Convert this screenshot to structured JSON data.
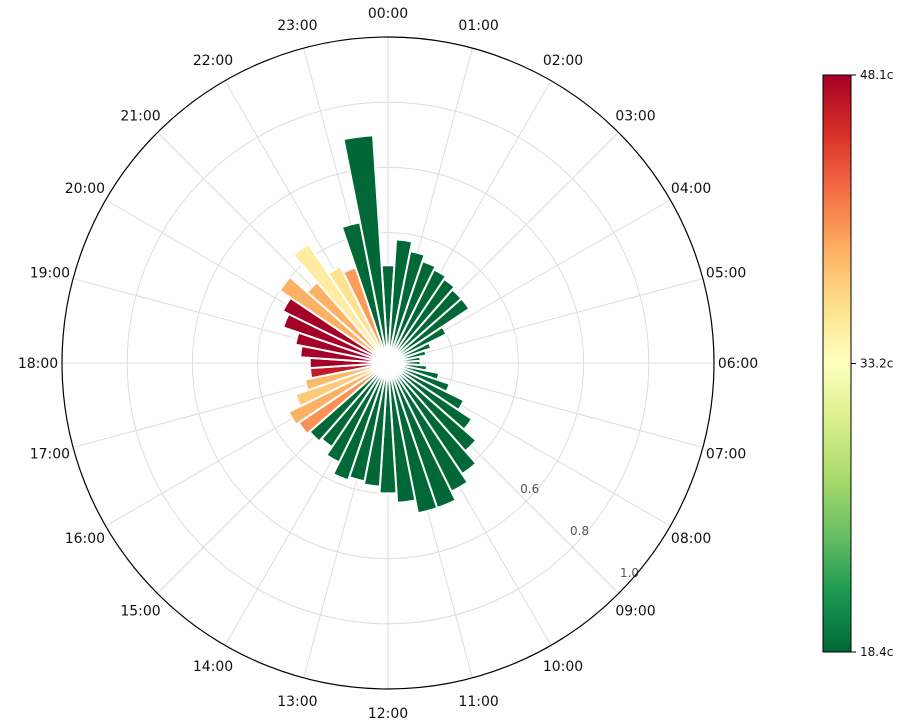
{
  "chart_data": {
    "type": "polar-bar",
    "angular_labels": [
      "00:00",
      "01:00",
      "02:00",
      "03:00",
      "04:00",
      "05:00",
      "06:00",
      "07:00",
      "08:00",
      "09:00",
      "10:00",
      "11:00",
      "12:00",
      "13:00",
      "14:00",
      "15:00",
      "16:00",
      "17:00",
      "18:00",
      "19:00",
      "20:00",
      "21:00",
      "22:00",
      "23:00"
    ],
    "radial_tick_labels": [
      "0.6",
      "0.8",
      "1.0"
    ],
    "radial_max": 1.0,
    "bins_per_hour": 2,
    "values": [
      0.3,
      0.38,
      0.35,
      0.33,
      0.32,
      0.31,
      0.3,
      0.3,
      0.2,
      0.14,
      0.12,
      0.1,
      0.1,
      0.12,
      0.16,
      0.2,
      0.26,
      0.31,
      0.36,
      0.41,
      0.44,
      0.47,
      0.47,
      0.43,
      0.4,
      0.38,
      0.37,
      0.38,
      0.34,
      0.31,
      0.32,
      0.33,
      0.34,
      0.3,
      0.26,
      0.24,
      0.24,
      0.27,
      0.29,
      0.34,
      0.36,
      0.4,
      0.33,
      0.44,
      0.33,
      0.31,
      0.44,
      0.7
    ],
    "prices": [
      18.4,
      18.4,
      18.4,
      18.4,
      18.4,
      18.4,
      18.4,
      18.4,
      18.4,
      18.4,
      18.4,
      18.4,
      18.4,
      18.4,
      18.4,
      18.4,
      18.4,
      18.4,
      18.4,
      18.4,
      18.4,
      18.4,
      18.4,
      18.4,
      18.4,
      18.4,
      18.4,
      18.4,
      18.4,
      18.4,
      18.4,
      40.5,
      39.0,
      37.5,
      38.5,
      46.5,
      48.1,
      48.1,
      48.1,
      48.1,
      48.1,
      39.0,
      39.0,
      35.0,
      36.0,
      40.0,
      18.4,
      18.4
    ],
    "colorbar": {
      "min": 18.4,
      "max": 48.1,
      "ticks": [
        "48.1c",
        "33.2c",
        "18.4c"
      ],
      "colors": [
        "#006837",
        "#1a9850",
        "#66bd63",
        "#a6d96a",
        "#d9ef8b",
        "#ffffbf",
        "#fee08b",
        "#fdae61",
        "#f46d43",
        "#d73027",
        "#a50026"
      ]
    }
  }
}
